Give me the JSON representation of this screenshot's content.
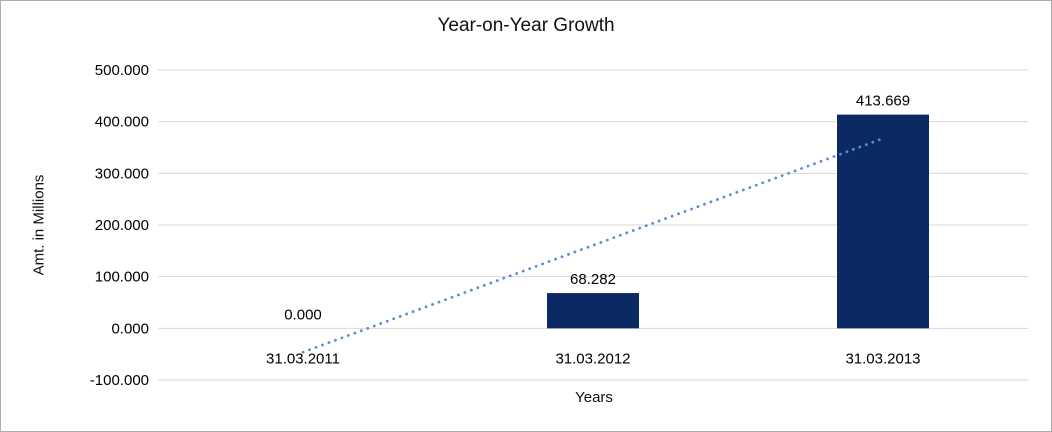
{
  "chart_data": {
    "type": "bar",
    "title": "Year-on-Year Growth",
    "xlabel": "Years",
    "ylabel": "Amt. in Millions",
    "categories": [
      "31.03.2011",
      "31.03.2012",
      "31.03.2013"
    ],
    "values": [
      0.0,
      68.282,
      413.669
    ],
    "data_labels": [
      "0.000",
      "68.282",
      "413.669"
    ],
    "ylim": [
      -100,
      500
    ],
    "ytick_step": 100,
    "ytick_labels": [
      "500.000",
      "400.000",
      "300.000",
      "200.000",
      "100.000",
      "0.000",
      "-100.000"
    ],
    "grid": true,
    "legend": "none",
    "bar_color": "#0B2A63",
    "gridline_color": "#D9D9D9",
    "trendline": {
      "type": "linear",
      "style": "dotted",
      "color": "#5B8DD1",
      "endpoints_values": [
        -46.18,
        367.49
      ]
    }
  }
}
